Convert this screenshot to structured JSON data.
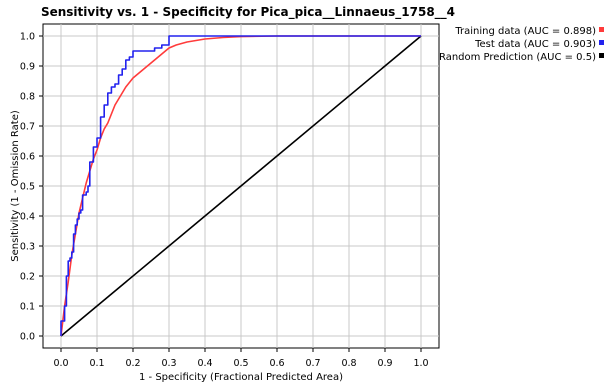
{
  "chart_data": {
    "type": "line",
    "title": "Sensitivity vs. 1 - Specificity for Pica_pica__Linnaeus_1758__4",
    "xlabel": "1 - Specificity  (Fractional Predicted Area)",
    "ylabel": "Sensitivity  (1 - Omission Rate)",
    "xlim": [
      0,
      1
    ],
    "ylim": [
      0,
      1
    ],
    "x_ticks": [
      "0.0",
      "0.1",
      "0.2",
      "0.3",
      "0.4",
      "0.5",
      "0.6",
      "0.7",
      "0.8",
      "0.9",
      "1.0"
    ],
    "y_ticks": [
      "0.0",
      "0.1",
      "0.2",
      "0.3",
      "0.4",
      "0.5",
      "0.6",
      "0.7",
      "0.8",
      "0.9",
      "1.0"
    ],
    "grid": true,
    "legend_position": "outside-top-right",
    "series": [
      {
        "name": "Training data (AUC = 0.898)",
        "color": "#ff3b3b",
        "x": [
          0.0,
          0.005,
          0.01,
          0.02,
          0.03,
          0.04,
          0.05,
          0.06,
          0.07,
          0.08,
          0.09,
          0.1,
          0.11,
          0.12,
          0.13,
          0.14,
          0.15,
          0.16,
          0.17,
          0.18,
          0.2,
          0.22,
          0.24,
          0.26,
          0.28,
          0.3,
          0.32,
          0.35,
          0.4,
          0.45,
          0.5,
          0.6,
          0.7,
          0.8,
          0.9,
          1.0
        ],
        "y": [
          0.0,
          0.05,
          0.1,
          0.18,
          0.27,
          0.34,
          0.41,
          0.46,
          0.51,
          0.55,
          0.59,
          0.62,
          0.66,
          0.69,
          0.71,
          0.74,
          0.77,
          0.79,
          0.81,
          0.83,
          0.86,
          0.88,
          0.9,
          0.92,
          0.94,
          0.96,
          0.97,
          0.98,
          0.99,
          0.995,
          0.998,
          1.0,
          1.0,
          1.0,
          1.0,
          1.0
        ]
      },
      {
        "name": "Test data (AUC = 0.903)",
        "color": "#2222ee",
        "step": true,
        "x": [
          0.0,
          0.01,
          0.015,
          0.02,
          0.025,
          0.03,
          0.035,
          0.04,
          0.045,
          0.05,
          0.055,
          0.06,
          0.07,
          0.075,
          0.08,
          0.09,
          0.1,
          0.11,
          0.12,
          0.13,
          0.14,
          0.15,
          0.16,
          0.17,
          0.18,
          0.19,
          0.2,
          0.21,
          0.22,
          0.26,
          0.28,
          0.3,
          0.31,
          1.0
        ],
        "y": [
          0.0,
          0.05,
          0.1,
          0.2,
          0.25,
          0.26,
          0.28,
          0.34,
          0.37,
          0.39,
          0.41,
          0.42,
          0.47,
          0.48,
          0.5,
          0.58,
          0.63,
          0.66,
          0.73,
          0.77,
          0.81,
          0.83,
          0.84,
          0.87,
          0.89,
          0.92,
          0.93,
          0.95,
          0.95,
          0.95,
          0.96,
          0.97,
          1.0,
          1.0
        ]
      },
      {
        "name": "Random Prediction (AUC = 0.5)",
        "color": "#000000",
        "x": [
          0.0,
          1.0
        ],
        "y": [
          0.0,
          1.0
        ]
      }
    ]
  }
}
